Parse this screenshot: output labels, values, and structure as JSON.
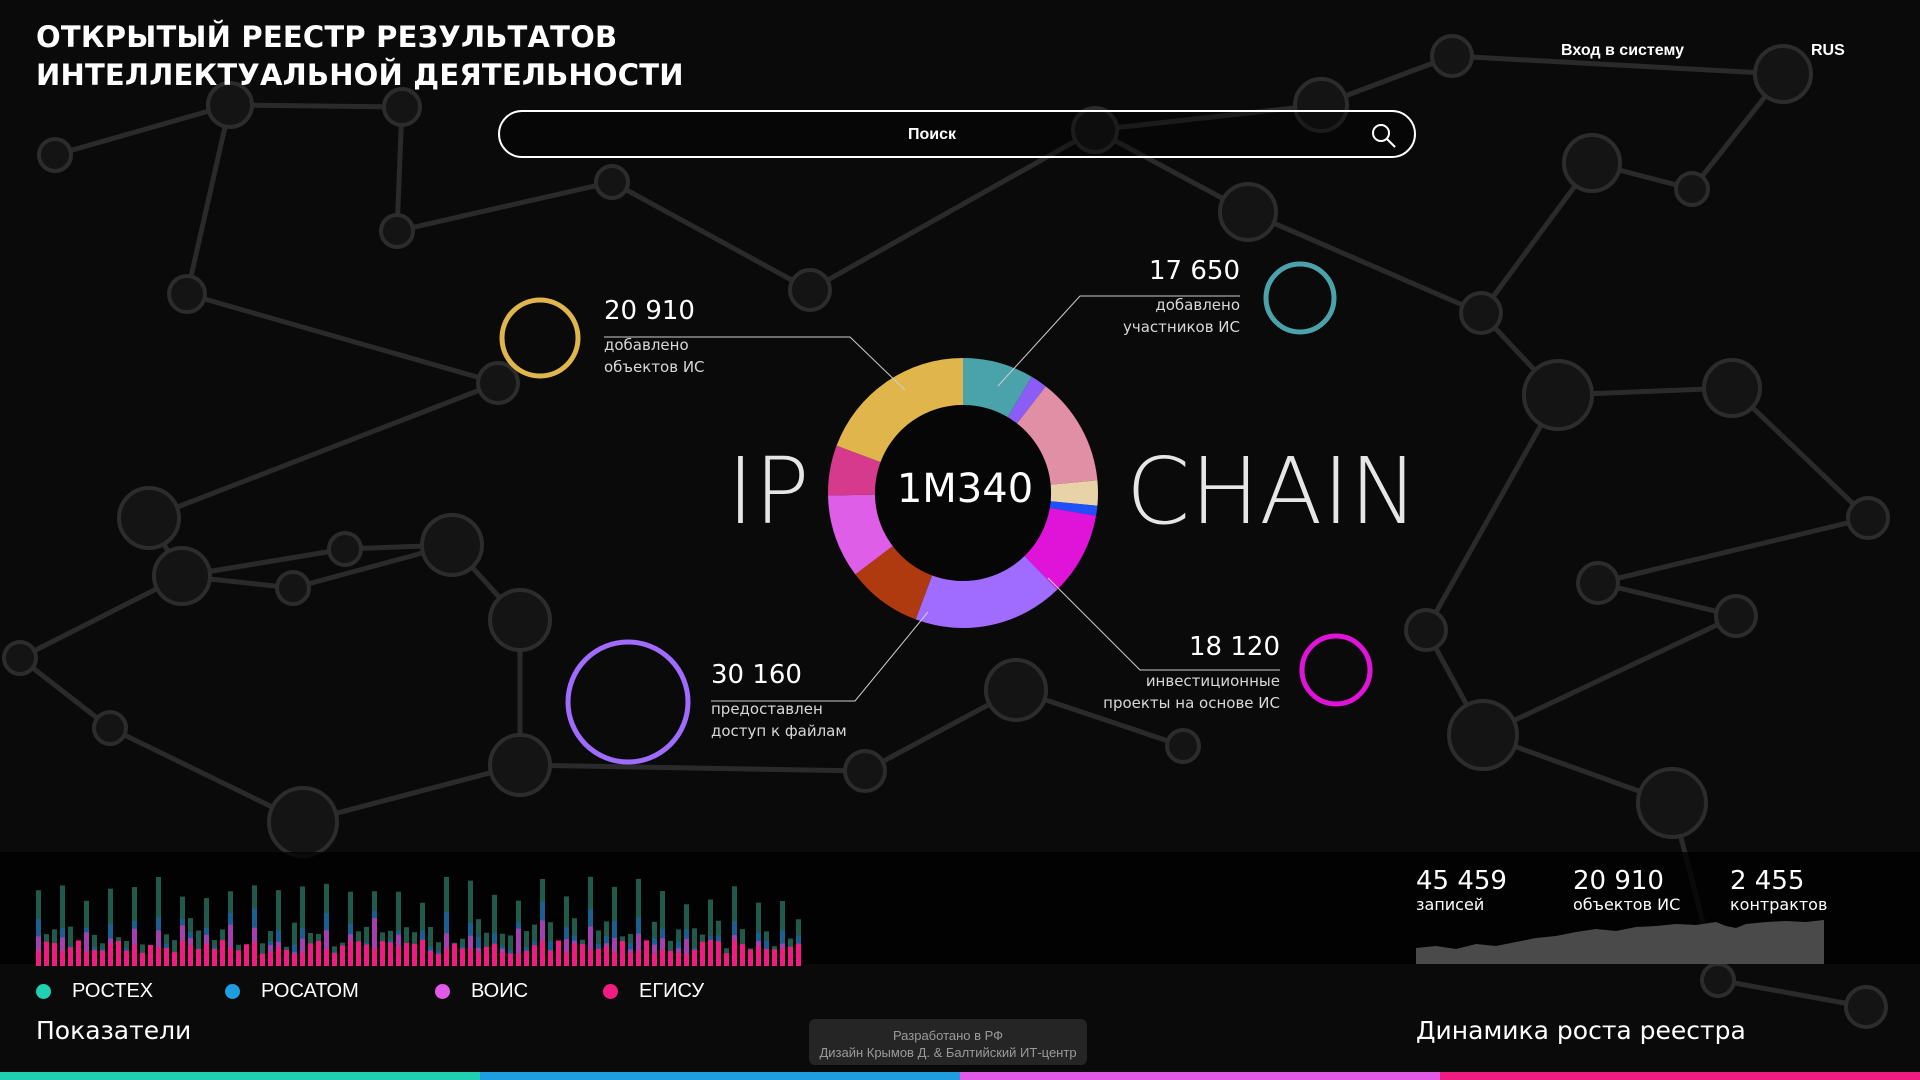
{
  "header": {
    "title_line1": "ОТКРЫТЫЙ РЕЕСТР РЕЗУЛЬТАТОВ",
    "title_line2": "ИНТЕЛЛЕКТУАЛЬНОЙ ДЕЯТЕЛЬНОСТИ",
    "login_label": "Вход в систему",
    "lang_label": "RUS"
  },
  "search": {
    "placeholder": "Поиск"
  },
  "hero": {
    "left_word": "IP",
    "right_word": "CHAIN",
    "center_value": "1M340",
    "donut_colors": [
      "#4aa3aa",
      "#8b5cf6",
      "#e08fa5",
      "#e8d2a8",
      "#1f4fff",
      "#e013d8",
      "#a06cff",
      "#b03a10",
      "#de5ee8",
      "#d63a8c",
      "#e0b64c"
    ],
    "stats": [
      {
        "value": "20 910",
        "desc": "добавлено\nобъектов ИС",
        "color": "#e0b64c"
      },
      {
        "value": "17 650",
        "desc": "добавлено\nучастников ИС",
        "color": "#4aa3aa"
      },
      {
        "value": "30 160",
        "desc": "предоставлен\nдоступ к файлам",
        "color": "#a06cff"
      },
      {
        "value": "18 120",
        "desc": "инвестиционные\nпроекты  на основе ИС",
        "color": "#e013d8"
      }
    ]
  },
  "legend": [
    {
      "label": "РОСТЕХ",
      "color": "#1fd1b1"
    },
    {
      "label": "РОСАТОМ",
      "color": "#1e9de0"
    },
    {
      "label": "ВОИС",
      "color": "#e35ae8"
    },
    {
      "label": "ЕГИСУ",
      "color": "#f01c82"
    }
  ],
  "panels": {
    "left_label": "Показатели",
    "right_label": "Динамика роста реестра"
  },
  "metrics": [
    {
      "value": "45 459",
      "label": "записей"
    },
    {
      "value": "20 910",
      "label": "объектов ИС"
    },
    {
      "value": "2 455",
      "label": "контрактов"
    }
  ],
  "credits": {
    "line1": "Разработано в РФ",
    "line2": "Дизайн Крымов Д. & Балтийский ИТ-центр"
  },
  "stripe_colors": [
    "#1fd1b1",
    "#1e9de0",
    "#e35ae8",
    "#f01c82"
  ]
}
